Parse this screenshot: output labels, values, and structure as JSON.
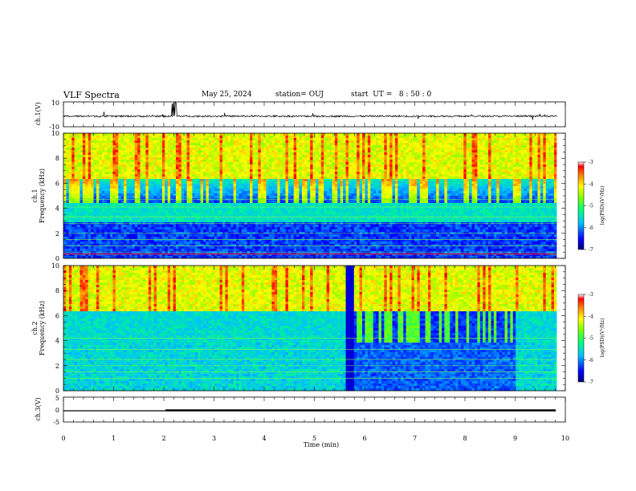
{
  "header": {
    "title": "VLF Spectra",
    "date": "May 25, 2024",
    "station": "station= OUJ",
    "start": "start  UT =   8 : 50 : 0"
  },
  "chart_data": [
    {
      "id": "ch1-waveform",
      "type": "line",
      "ylabel": "ch.1(V)",
      "ylim": [
        -10,
        10
      ],
      "yticks": [
        "10",
        "-10"
      ],
      "description": "time-domain waveform, approx. -1.5 V baseline with spikes near 2.2 min",
      "x_range_min": [
        0,
        9.83
      ]
    },
    {
      "id": "ch1-spectrogram",
      "type": "heatmap",
      "ylabel": "Frequency (kHz)",
      "channel": "ch.1",
      "ylim": [
        0,
        10
      ],
      "yticks": [
        "0",
        "2",
        "4",
        "6",
        "8",
        "10"
      ],
      "x_range_min": [
        0,
        9.83
      ],
      "colorbar": {
        "label": "log(PSD)(V²/Hz)",
        "range": [
          -7,
          -3
        ],
        "ticks": [
          "-3",
          "-4",
          "-5",
          "-6",
          "-7"
        ]
      }
    },
    {
      "id": "ch2-spectrogram",
      "type": "heatmap",
      "ylabel": "Frequency (kHz)",
      "channel": "ch.2",
      "ylim": [
        0,
        10
      ],
      "yticks": [
        "0",
        "2",
        "4",
        "6",
        "8",
        "10"
      ],
      "x_range_min": [
        0,
        9.83
      ],
      "colorbar": {
        "label": "log(PSD)(V²/Hz)",
        "range": [
          -7,
          -3
        ],
        "ticks": [
          "-3",
          "-4",
          "-5",
          "-6",
          "-7"
        ]
      }
    },
    {
      "id": "ch3-trace",
      "type": "line",
      "ylabel": "ch.3(V)",
      "ylim": [
        -5,
        5
      ],
      "yticks": [
        "5",
        "0",
        "-5"
      ],
      "description": "flat line near -2 V; thicker after 2 min",
      "x_range_min": [
        0,
        9.83
      ]
    }
  ],
  "xaxis": {
    "label": "Time  (min)",
    "min": 0,
    "max": 10,
    "ticks": [
      "0",
      "1",
      "2",
      "3",
      "4",
      "5",
      "6",
      "7",
      "8",
      "9",
      "10"
    ]
  },
  "colors": {
    "colormap": [
      "#000080",
      "#0000ff",
      "#00bfff",
      "#00ff80",
      "#80ff00",
      "#ffff00",
      "#ff8000",
      "#ff0000",
      "#ffffff"
    ]
  }
}
